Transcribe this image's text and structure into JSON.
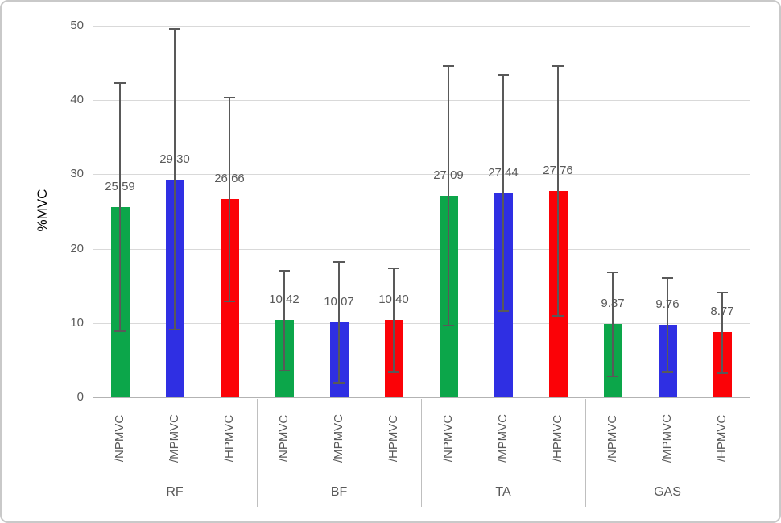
{
  "figure": {
    "background": "#FFFFFF",
    "border_color": "#C9C9C9"
  },
  "chart_data": {
    "type": "bar",
    "title": "",
    "xlabel": "",
    "ylabel": "%MVC",
    "ylim": [
      0,
      50
    ],
    "yticks": [
      0,
      10,
      20,
      30,
      40,
      50
    ],
    "grid": true,
    "legend_position": "none",
    "categories": [
      "RF",
      "BF",
      "TA",
      "GAS"
    ],
    "series": [
      {
        "name": "/NPMVC",
        "color": "#0CA64A",
        "values": [
          25.59,
          10.42,
          27.09,
          9.87
        ],
        "labels": [
          "25.59",
          "10.42",
          "27.09",
          "9.87"
        ],
        "error_top": [
          42.3,
          17.0,
          44.6,
          16.8
        ],
        "error_bottom": [
          8.9,
          3.6,
          9.7,
          2.8
        ]
      },
      {
        "name": "/MPMVC",
        "color": "#2F2FE3",
        "values": [
          29.3,
          10.07,
          27.44,
          9.76
        ],
        "labels": [
          "29.30",
          "10.07",
          "27.44",
          "9.76"
        ],
        "error_top": [
          49.6,
          18.2,
          43.4,
          16.1
        ],
        "error_bottom": [
          9.1,
          1.9,
          11.6,
          3.4
        ]
      },
      {
        "name": "/HPMVC",
        "color": "#FB0207",
        "values": [
          26.66,
          10.4,
          27.76,
          8.77
        ],
        "labels": [
          "26.66",
          "10.40",
          "27.76",
          "8.77"
        ],
        "error_top": [
          40.4,
          17.3,
          44.6,
          14.1
        ],
        "error_bottom": [
          12.9,
          3.4,
          11.0,
          3.3
        ]
      }
    ],
    "style_colors": {
      "gridline": "#D9D9D9",
      "axis_line": "#B3B3B3",
      "error_bar": "#595959",
      "tick_label": "#595959",
      "data_label": "#595959",
      "series_label": "#595959",
      "group_label": "#595959",
      "group_divider": "#BFBFBF"
    }
  }
}
